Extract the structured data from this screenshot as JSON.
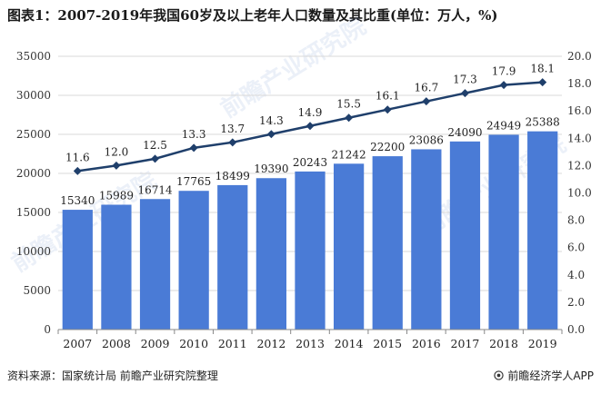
{
  "title": "图表1：2007-2019年我国60岁及以上老年人口数量及其比重(单位：万人，%)",
  "footer": {
    "source": "资料来源：国家统计局 前瞻产业研究院整理",
    "brand": "前瞻经济学人APP",
    "brand_icon": "brand-logo-icon"
  },
  "watermark": "前瞻产业研究院",
  "colors": {
    "bar": "#4a7bd6",
    "line": "#1f3f6b",
    "grid": "#d9d9d9",
    "axis": "#888888"
  },
  "chart_data": {
    "type": "bar+line",
    "categories": [
      "2007",
      "2008",
      "2009",
      "2010",
      "2011",
      "2012",
      "2013",
      "2014",
      "2015",
      "2016",
      "2017",
      "2018",
      "2019"
    ],
    "series": [
      {
        "type": "bar",
        "axis": "left",
        "values": [
          15340,
          15989,
          16714,
          17765,
          18499,
          19390,
          20243,
          21242,
          22200,
          23086,
          24090,
          24949,
          25388
        ]
      },
      {
        "type": "line",
        "axis": "right",
        "marker": "diamond",
        "values": [
          11.6,
          12.0,
          12.5,
          13.3,
          13.7,
          14.3,
          14.9,
          15.5,
          16.1,
          16.7,
          17.3,
          17.9,
          18.1
        ]
      }
    ],
    "bar_labels": [
      "15340",
      "15989",
      "16714",
      "17765",
      "18499",
      "19390",
      "20243",
      "21242",
      "22200",
      "23086",
      "24090",
      "24949",
      "25388"
    ],
    "line_labels": [
      "11.6",
      "12.0",
      "12.5",
      "13.3",
      "13.7",
      "14.3",
      "14.9",
      "15.5",
      "16.1",
      "16.7",
      "17.3",
      "17.9",
      "18.1"
    ],
    "y_left": {
      "min": 0,
      "max": 35000,
      "ticks": [
        "0",
        "5000",
        "10000",
        "15000",
        "20000",
        "25000",
        "30000",
        "35000"
      ]
    },
    "y_right": {
      "min": 0,
      "max": 20,
      "ticks": [
        "0.0",
        "2.0",
        "4.0",
        "6.0",
        "8.0",
        "10.0",
        "12.0",
        "14.0",
        "16.0",
        "18.0",
        "20.0"
      ]
    },
    "grid": "horizontal",
    "legend": "none"
  }
}
